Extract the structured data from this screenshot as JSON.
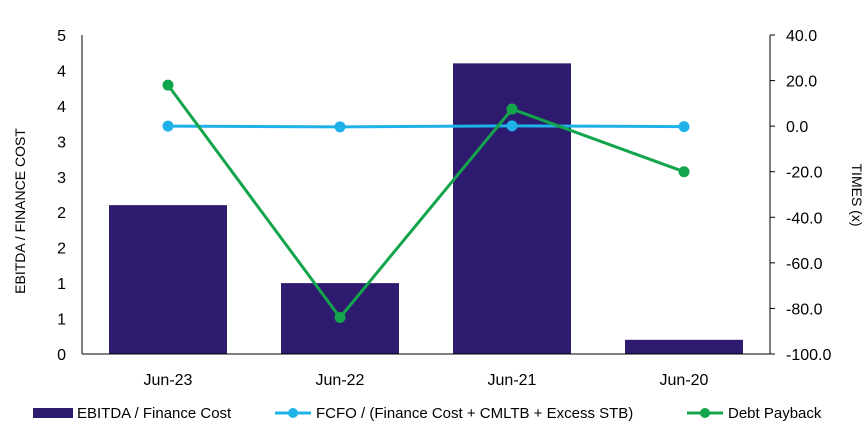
{
  "chart_data": {
    "type": "bar+line",
    "categories": [
      "Jun-23",
      "Jun-22",
      "Jun-21",
      "Jun-20"
    ],
    "left_axis": {
      "label": "EBITDA / FINANCE COST",
      "range": [
        0,
        4.5
      ],
      "tick_labels": [
        "0",
        "1",
        "1",
        "2",
        "2",
        "3",
        "3",
        "4",
        "4",
        "5"
      ]
    },
    "right_axis": {
      "label": "TIMES (x)",
      "range": [
        -100,
        40
      ],
      "tick_labels": [
        "-100.0",
        "-80.0",
        "-60.0",
        "-40.0",
        "-20.0",
        "0.0",
        "20.0",
        "40.0"
      ]
    },
    "series": [
      {
        "name": "EBITDA / Finance Cost",
        "type": "bar",
        "axis": "left",
        "color": "#2e1a6e",
        "values": [
          2.1,
          1.0,
          4.1,
          0.2
        ]
      },
      {
        "name": "FCFO / (Finance Cost + CMLTB + Excess STB)",
        "type": "line",
        "axis": "right",
        "color": "#1fb2e8",
        "values": [
          0.0,
          -0.3,
          0.1,
          -0.2
        ]
      },
      {
        "name": "Debt Payback",
        "type": "line",
        "axis": "right",
        "color": "#13a54b",
        "values": [
          18.0,
          -84.0,
          7.5,
          -20.0
        ]
      }
    ],
    "grid": false,
    "legend": "bottom"
  }
}
